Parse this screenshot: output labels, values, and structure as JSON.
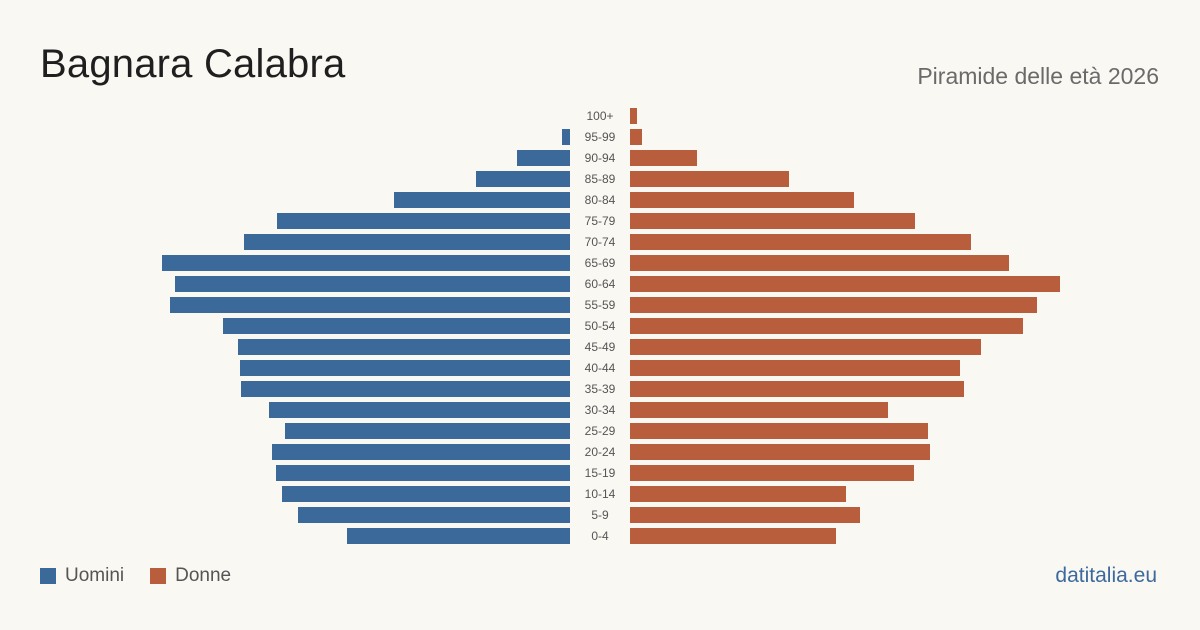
{
  "header": {
    "title": "Bagnara Calabra",
    "subtitle": "Piramide delle età 2026"
  },
  "legend": {
    "men_label": "Uomini",
    "women_label": "Donne"
  },
  "footer": {
    "brand": "datitalia.eu"
  },
  "colors": {
    "men": "#3b6a9a",
    "women": "#b95e3c",
    "tick": "#555555"
  },
  "chart_data": {
    "type": "bar",
    "orientation": "horizontal-pyramid",
    "categories": [
      "100+",
      "95-99",
      "90-94",
      "85-89",
      "80-84",
      "75-79",
      "70-74",
      "65-69",
      "60-64",
      "55-59",
      "50-54",
      "45-49",
      "40-44",
      "35-39",
      "30-34",
      "25-29",
      "20-24",
      "15-19",
      "10-14",
      "5-9",
      "0-4"
    ],
    "series": [
      {
        "name": "Uomini",
        "values": [
          0,
          8,
          53,
          94,
          176,
          293,
          326,
          408,
          395,
          400,
          347,
          332,
          330,
          329,
          301,
          285,
          298,
          294,
          288,
          272,
          223
        ]
      },
      {
        "name": "Donne",
        "values": [
          7,
          12,
          67,
          159,
          224,
          285,
          341,
          379,
          430,
          407,
          393,
          351,
          330,
          334,
          258,
          298,
          300,
          284,
          216,
          230,
          206
        ]
      }
    ],
    "xlim": [
      0,
      430
    ],
    "legend_position": "bottom-left",
    "grid": false
  }
}
